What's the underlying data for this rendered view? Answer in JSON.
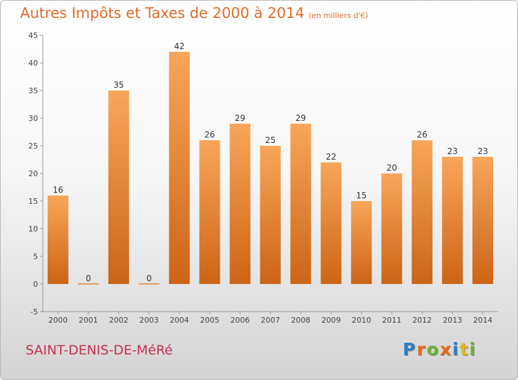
{
  "header": {
    "title": "Autres Impôts et Taxes de 2000 à 2014",
    "subtitle": "(en milliers d'€)"
  },
  "footer": {
    "commune": "SAINT-DENIS-DE-MéRé",
    "logo_letters": [
      "P",
      "r",
      "o",
      "x",
      "i",
      "t",
      "i"
    ]
  },
  "colors": {
    "title": "#e26b2a",
    "commune": "#c8304e",
    "bar_top": "#f8a65a",
    "bar_bottom": "#cc6416",
    "logo": [
      "#2f7fc2",
      "#e36c1c",
      "#6ab42d",
      "#e36c1c",
      "#2f7fc2",
      "#e3b61c",
      "#6ab42d"
    ]
  },
  "chart_data": {
    "type": "bar",
    "title": "Autres Impôts et Taxes de 2000 à 2014",
    "subtitle": "(en milliers d'€)",
    "categories": [
      "2000",
      "2001",
      "2002",
      "2003",
      "2004",
      "2005",
      "2006",
      "2007",
      "2008",
      "2009",
      "2010",
      "2011",
      "2012",
      "2013",
      "2014"
    ],
    "values": [
      16,
      0,
      35,
      0,
      42,
      26,
      29,
      25,
      29,
      22,
      15,
      20,
      26,
      23,
      23
    ],
    "data_labels": [
      "16",
      "0",
      "35",
      "0",
      "42",
      "26",
      "29",
      "25",
      "29",
      "22",
      "15",
      "20",
      "26",
      "23",
      "23"
    ],
    "yticks": [
      -5,
      0,
      5,
      10,
      15,
      20,
      25,
      30,
      35,
      40,
      45
    ],
    "ylim": [
      -5,
      45
    ],
    "grid": false,
    "xlabel": "",
    "ylabel": ""
  }
}
